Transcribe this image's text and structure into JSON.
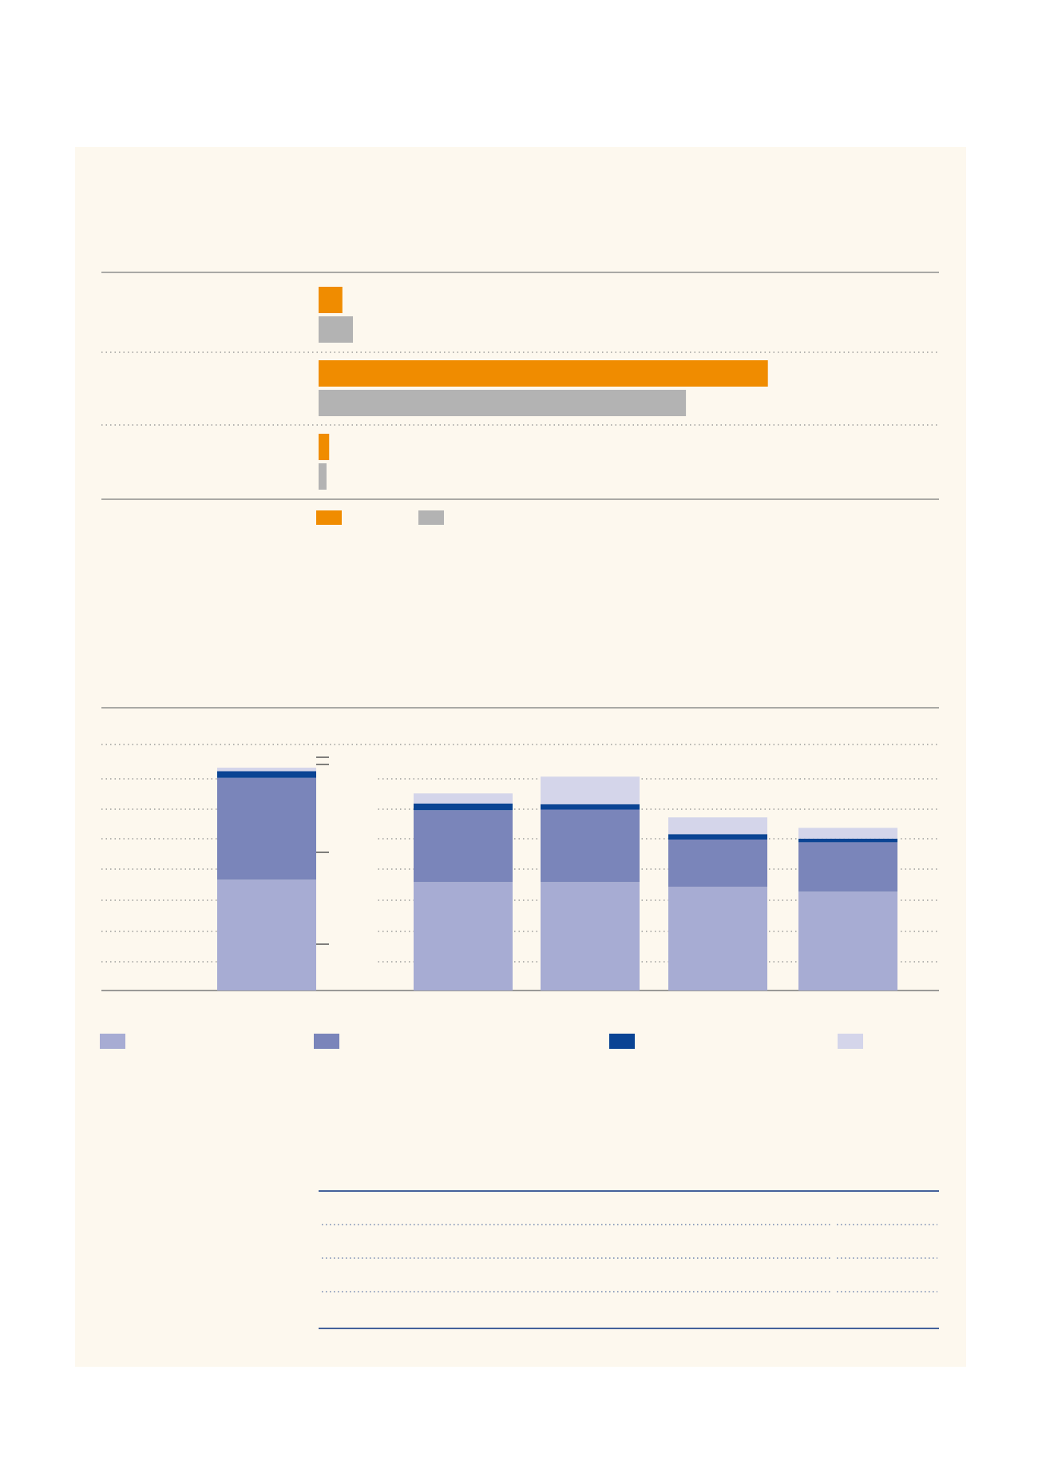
{
  "colors": {
    "panel_background": "#fdf8ee",
    "rule": "#7a7a7a",
    "table_rule": "#2a4d8f",
    "orange": "#f08c00",
    "gray": "#b3b3b3",
    "seg1": "#a7acd3",
    "seg2": "#7a85ba",
    "seg3": "#0a4494",
    "seg4": "#d4d5ea"
  },
  "chart_data": [
    {
      "type": "bar",
      "orientation": "horizontal",
      "categories": [
        "",
        "",
        ""
      ],
      "series": [
        {
          "color": "#f08c00",
          "values": [
            4.5,
            85.0,
            2.0
          ]
        },
        {
          "color": "#b3b3b3",
          "values": [
            6.5,
            69.5,
            1.5
          ]
        }
      ],
      "xlim": [
        0,
        100
      ],
      "grid": true,
      "legend": "bottom"
    },
    {
      "type": "bar",
      "orientation": "vertical",
      "stacked": true,
      "categories": [
        "",
        "",
        "",
        "",
        ""
      ],
      "series": [
        {
          "color": "#a7acd3",
          "values": [
            370,
            362,
            362,
            346,
            330
          ]
        },
        {
          "color": "#7a85ba",
          "values": [
            340,
            240,
            242,
            158,
            165
          ]
        },
        {
          "color": "#0a4494",
          "values": [
            22,
            22,
            18,
            18,
            12
          ]
        },
        {
          "color": "#d4d5ea",
          "values": [
            12,
            34,
            92,
            56,
            36
          ]
        }
      ],
      "ylim": [
        0,
        800
      ],
      "grid": true,
      "legend": "bottom"
    }
  ],
  "table": {
    "rows": 4
  }
}
